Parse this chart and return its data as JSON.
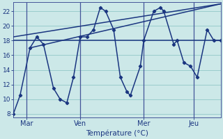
{
  "background_color": "#cce8e8",
  "grid_color": "#99cccc",
  "line_color": "#1a3580",
  "vline_color": "#445599",
  "ylim": [
    7.5,
    23.2
  ],
  "xlim": [
    0,
    31
  ],
  "yticks": [
    8,
    10,
    12,
    14,
    16,
    18,
    20,
    22
  ],
  "day_ticks": [
    {
      "label": "Mar",
      "x": 2.0
    },
    {
      "label": "Ven",
      "x": 10.0
    },
    {
      "label": "Mer",
      "x": 19.5
    },
    {
      "label": "Jeu",
      "x": 27.0
    }
  ],
  "xlabel": "Température (°C)",
  "temp_curve": [
    [
      0,
      8
    ],
    [
      1,
      10.5
    ],
    [
      2.5,
      17
    ],
    [
      3.5,
      18.5
    ],
    [
      4.5,
      17.5
    ],
    [
      6,
      11.5
    ],
    [
      7,
      10
    ],
    [
      8,
      9.5
    ],
    [
      9,
      13
    ],
    [
      10,
      18.5
    ],
    [
      11,
      18.5
    ],
    [
      12,
      19.5
    ],
    [
      13,
      22.5
    ],
    [
      13.8,
      22
    ],
    [
      15,
      19.5
    ],
    [
      16,
      13
    ],
    [
      17,
      11
    ],
    [
      17.5,
      10.5
    ],
    [
      19,
      14.5
    ],
    [
      19.5,
      18
    ],
    [
      21,
      22
    ],
    [
      22,
      22.5
    ],
    [
      22.5,
      22
    ],
    [
      24,
      17.5
    ],
    [
      24.5,
      18
    ],
    [
      25.5,
      15
    ],
    [
      26.5,
      14.5
    ],
    [
      27.5,
      13
    ],
    [
      29,
      19.5
    ],
    [
      30,
      18
    ],
    [
      31,
      18
    ]
  ],
  "flat_line": [
    [
      0,
      18
    ],
    [
      31,
      18
    ]
  ],
  "trend_line1": [
    [
      0,
      18.5
    ],
    [
      31,
      23
    ]
  ],
  "trend_line2": [
    [
      2.5,
      17
    ],
    [
      31,
      23.0
    ]
  ]
}
